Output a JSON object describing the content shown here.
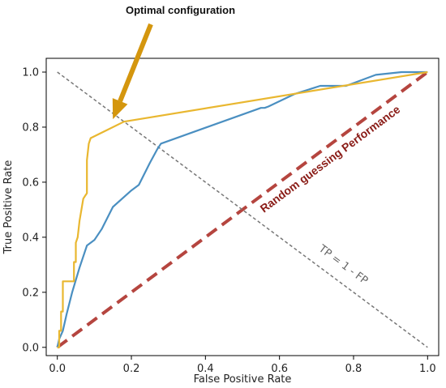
{
  "chart_data": {
    "type": "line",
    "xlabel": "False Positive Rate",
    "ylabel": "True Positive Rate",
    "xlim": [
      -0.03,
      1.03
    ],
    "ylim": [
      -0.03,
      1.05
    ],
    "x_ticks": [
      0.0,
      0.2,
      0.4,
      0.6,
      0.8,
      1.0
    ],
    "y_ticks": [
      0.0,
      0.2,
      0.4,
      0.6,
      0.8,
      1.0
    ],
    "x_tick_labels": [
      "0.0",
      "0.2",
      "0.4",
      "0.6",
      "0.8",
      "1.0"
    ],
    "y_tick_labels": [
      "0.0",
      "0.2",
      "0.4",
      "0.6",
      "0.8",
      "1.0"
    ],
    "grid": false,
    "series": [
      {
        "color": "#4a8fc1",
        "x": [
          0.0,
          0.005,
          0.015,
          0.025,
          0.04,
          0.06,
          0.08,
          0.1,
          0.12,
          0.15,
          0.2,
          0.22,
          0.25,
          0.27,
          0.28,
          0.55,
          0.56,
          0.57,
          0.64,
          0.71,
          0.78,
          0.86,
          0.93,
          0.97,
          1.0
        ],
        "y": [
          0.0,
          0.03,
          0.06,
          0.12,
          0.2,
          0.29,
          0.37,
          0.39,
          0.43,
          0.51,
          0.57,
          0.59,
          0.67,
          0.72,
          0.74,
          0.87,
          0.87,
          0.875,
          0.92,
          0.95,
          0.95,
          0.99,
          1.0,
          1.0,
          1.0
        ]
      },
      {
        "color": "#e9b730",
        "x": [
          0.0,
          0.005,
          0.005,
          0.01,
          0.01,
          0.015,
          0.015,
          0.02,
          0.02,
          0.045,
          0.045,
          0.05,
          0.05,
          0.055,
          0.06,
          0.065,
          0.07,
          0.075,
          0.08,
          0.08,
          0.085,
          0.09,
          0.18,
          1.0
        ],
        "y": [
          0.0,
          0.0,
          0.06,
          0.06,
          0.13,
          0.13,
          0.24,
          0.24,
          0.24,
          0.24,
          0.31,
          0.31,
          0.38,
          0.4,
          0.46,
          0.5,
          0.54,
          0.55,
          0.56,
          0.68,
          0.74,
          0.76,
          0.82,
          1.0
        ]
      }
    ],
    "reference_lines": [
      {
        "name": "diagonal",
        "color": "#b5453f",
        "from": [
          0.0,
          0.0
        ],
        "to": [
          1.0,
          1.0
        ]
      },
      {
        "name": "anti-diagonal",
        "color": "#777777",
        "from": [
          0.0,
          1.0
        ],
        "to": [
          1.0,
          0.0
        ]
      }
    ],
    "annotations": {
      "optimal": {
        "text": "Optimal  configuration",
        "color": "#d4960e",
        "point": [
          0.15,
          0.82
        ]
      },
      "random": {
        "text": "Random guessing Performance",
        "color": "#8a1c17"
      },
      "tp": {
        "text": "TP = 1 - FP"
      }
    }
  }
}
